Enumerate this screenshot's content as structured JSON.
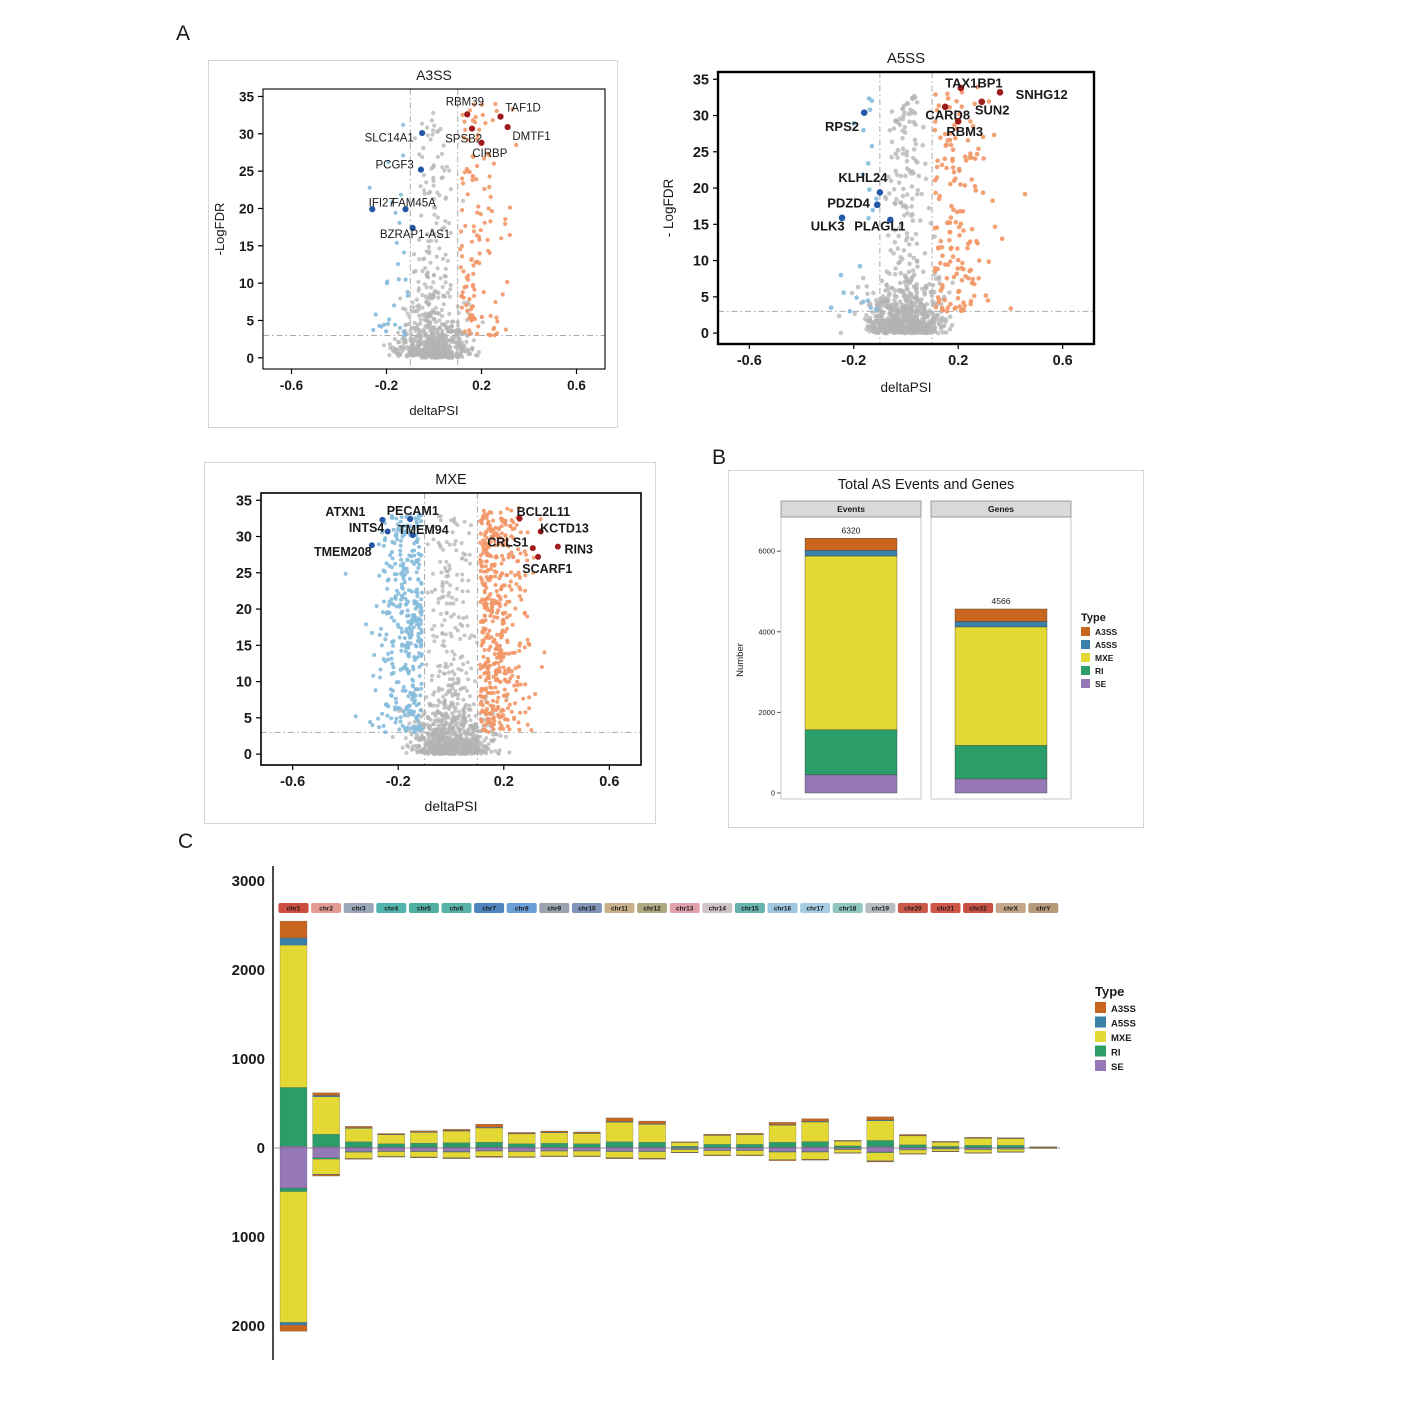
{
  "panel_labels": {
    "a": "A",
    "b": "B",
    "c": "C"
  },
  "colors": {
    "A3SS": "#c8661f",
    "A5SS": "#3a80a8",
    "MXE": "#e3d834",
    "RI": "#2a9d68",
    "SE": "#9678b6",
    "up": "#f29666",
    "down": "#85bbdc",
    "up_label": "#9e1c1c",
    "down_label": "#2458a6",
    "ns": "#b3b3b3",
    "threshold": "#9e9e9e"
  },
  "chart_data": [
    {
      "id": "volcano_a3ss",
      "type": "scatter",
      "variant": "volcano",
      "title": "A3SS",
      "xlabel": "deltaPSI",
      "ylabel": "-LogFDR",
      "xlim": [
        -0.72,
        0.72
      ],
      "ylim": [
        -1.5,
        36
      ],
      "xticks": [
        -0.6,
        -0.2,
        0.2,
        0.6
      ],
      "yticks": [
        0,
        5,
        10,
        15,
        20,
        25,
        30,
        35
      ],
      "fdr_threshold": 3,
      "psi_thresholds": [
        -0.1,
        0.1
      ],
      "n_points": {
        "ns": 700,
        "up": 130,
        "down": 30
      },
      "spread_up": 0.1,
      "spread_down": 0.075,
      "ypow": 1.4,
      "ypow_down": 1.8,
      "seed": 7,
      "labeled_genes": [
        {
          "name": "RBM39",
          "x": 0.14,
          "y": 32.6,
          "lx": 0.13,
          "ly": 34.3,
          "anchor": "middle",
          "dir": "up"
        },
        {
          "name": "TAF1D",
          "x": 0.28,
          "y": 32.3,
          "lx": 0.3,
          "ly": 33.5,
          "anchor": "start",
          "dir": "up"
        },
        {
          "name": "DMTF1",
          "x": 0.31,
          "y": 30.9,
          "lx": 0.33,
          "ly": 29.7,
          "anchor": "start",
          "dir": "up"
        },
        {
          "name": "SPSB2",
          "x": 0.16,
          "y": 30.7,
          "lx": 0.125,
          "ly": 29.4,
          "anchor": "middle",
          "dir": "up"
        },
        {
          "name": "CIRBP",
          "x": 0.2,
          "y": 28.8,
          "lx": 0.235,
          "ly": 27.4,
          "anchor": "middle",
          "dir": "up"
        },
        {
          "name": "SLC14A1",
          "x": -0.05,
          "y": 30.1,
          "lx": -0.085,
          "ly": 29.5,
          "anchor": "end",
          "dir": "down"
        },
        {
          "name": "PCGF3",
          "x": -0.055,
          "y": 25.2,
          "lx": -0.085,
          "ly": 25.9,
          "anchor": "end",
          "dir": "down"
        },
        {
          "name": "IFI27",
          "x": -0.26,
          "y": 19.9,
          "lx": -0.22,
          "ly": 20.8,
          "anchor": "middle",
          "dir": "down"
        },
        {
          "name": "FAM45A",
          "x": -0.12,
          "y": 19.9,
          "lx": -0.085,
          "ly": 20.8,
          "anchor": "middle",
          "dir": "down"
        },
        {
          "name": "BZRAP1-AS1",
          "x": -0.09,
          "y": 17.4,
          "lx": -0.08,
          "ly": 16.6,
          "anchor": "middle",
          "dir": "down"
        }
      ]
    },
    {
      "id": "volcano_a5ss",
      "type": "scatter",
      "variant": "volcano",
      "title": "A5SS",
      "xlabel": "deltaPSI",
      "ylabel": "- LogFDR",
      "xlim": [
        -0.72,
        0.72
      ],
      "ylim": [
        -1.5,
        36
      ],
      "xticks": [
        -0.6,
        -0.2,
        0.2,
        0.6
      ],
      "yticks": [
        0,
        5,
        10,
        15,
        20,
        25,
        30,
        35
      ],
      "fdr_threshold": 3,
      "psi_thresholds": [
        -0.1,
        0.1
      ],
      "n_points": {
        "ns": 750,
        "up": 160,
        "down": 22
      },
      "spread_up": 0.1,
      "spread_down": 0.07,
      "ypow": 1.3,
      "ypow_down": 1.6,
      "seed": 13,
      "labeled_genes": [
        {
          "name": "TAX1BP1",
          "x": 0.21,
          "y": 33.8,
          "lx": 0.26,
          "ly": 34.4,
          "anchor": "middle",
          "dir": "up"
        },
        {
          "name": "SNHG12",
          "x": 0.36,
          "y": 33.2,
          "lx": 0.42,
          "ly": 32.8,
          "anchor": "start",
          "dir": "up"
        },
        {
          "name": "CARD8",
          "x": 0.15,
          "y": 31.2,
          "lx": 0.16,
          "ly": 30.0,
          "anchor": "middle",
          "dir": "up"
        },
        {
          "name": "SUN2",
          "x": 0.29,
          "y": 31.9,
          "lx": 0.33,
          "ly": 30.7,
          "anchor": "middle",
          "dir": "up"
        },
        {
          "name": "RBM3",
          "x": 0.2,
          "y": 29.2,
          "lx": 0.225,
          "ly": 27.7,
          "anchor": "middle",
          "dir": "up"
        },
        {
          "name": "RPS2",
          "x": -0.16,
          "y": 30.4,
          "lx": -0.245,
          "ly": 28.4,
          "anchor": "middle",
          "dir": "down"
        },
        {
          "name": "KLHL24",
          "x": -0.1,
          "y": 19.4,
          "lx": -0.165,
          "ly": 21.4,
          "anchor": "middle",
          "dir": "down"
        },
        {
          "name": "PDZD4",
          "x": -0.11,
          "y": 17.7,
          "lx": -0.22,
          "ly": 17.9,
          "anchor": "middle",
          "dir": "down"
        },
        {
          "name": "ULK3",
          "x": -0.245,
          "y": 15.9,
          "lx": -0.3,
          "ly": 14.7,
          "anchor": "middle",
          "dir": "down"
        },
        {
          "name": "PLAGL1",
          "x": -0.06,
          "y": 15.6,
          "lx": -0.1,
          "ly": 14.7,
          "anchor": "middle",
          "dir": "down"
        }
      ]
    },
    {
      "id": "volcano_mxe",
      "type": "scatter",
      "variant": "volcano",
      "title": "MXE",
      "xlabel": "deltaPSI",
      "ylabel": "",
      "xlim": [
        -0.72,
        0.72
      ],
      "ylim": [
        -1.5,
        36
      ],
      "xticks": [
        -0.6,
        -0.2,
        0.2,
        0.6
      ],
      "yticks": [
        0,
        5,
        10,
        15,
        20,
        25,
        30,
        35
      ],
      "fdr_threshold": 3,
      "psi_thresholds": [
        -0.1,
        0.1
      ],
      "n_points": {
        "ns": 900,
        "up": 480,
        "down": 380
      },
      "spread_up": 0.085,
      "spread_down": 0.085,
      "ypow": 1.0,
      "ypow_down": 1.0,
      "seed": 21,
      "labeled_genes": [
        {
          "name": "ATXN1",
          "x": -0.26,
          "y": 32.3,
          "lx": -0.4,
          "ly": 33.4,
          "anchor": "middle",
          "dir": "down"
        },
        {
          "name": "PECAM1",
          "x": -0.155,
          "y": 32.4,
          "lx": -0.145,
          "ly": 33.5,
          "anchor": "middle",
          "dir": "down"
        },
        {
          "name": "INTS4",
          "x": -0.24,
          "y": 30.7,
          "lx": -0.32,
          "ly": 31.2,
          "anchor": "middle",
          "dir": "down"
        },
        {
          "name": "TMEM94",
          "x": -0.145,
          "y": 30.2,
          "lx": -0.105,
          "ly": 30.9,
          "anchor": "middle",
          "dir": "down"
        },
        {
          "name": "TMEM208",
          "x": -0.3,
          "y": 28.8,
          "lx": -0.41,
          "ly": 27.9,
          "anchor": "middle",
          "dir": "down"
        },
        {
          "name": "BCL2L11",
          "x": 0.26,
          "y": 32.5,
          "lx": 0.35,
          "ly": 33.4,
          "anchor": "middle",
          "dir": "up"
        },
        {
          "name": "KCTD13",
          "x": 0.34,
          "y": 30.7,
          "lx": 0.43,
          "ly": 31.1,
          "anchor": "middle",
          "dir": "up"
        },
        {
          "name": "CRLS1",
          "x": 0.31,
          "y": 28.4,
          "lx": 0.215,
          "ly": 29.2,
          "anchor": "middle",
          "dir": "up"
        },
        {
          "name": "RIN3",
          "x": 0.405,
          "y": 28.6,
          "lx": 0.43,
          "ly": 28.2,
          "anchor": "start",
          "dir": "up"
        },
        {
          "name": "SCARF1",
          "x": 0.33,
          "y": 27.2,
          "lx": 0.365,
          "ly": 25.5,
          "anchor": "middle",
          "dir": "up"
        }
      ]
    },
    {
      "id": "as_totals",
      "type": "bar",
      "variant": "stacked_facets",
      "title": "Total AS Events and Genes",
      "ylabel": "Number",
      "yticks": [
        0,
        2000,
        4000,
        6000
      ],
      "stack_order": [
        "SE",
        "RI",
        "MXE",
        "A5SS",
        "A3SS"
      ],
      "facets": [
        {
          "label": "Events",
          "total": 6320,
          "values": {
            "SE": 450,
            "RI": 1120,
            "MXE": 4310,
            "A5SS": 140,
            "A3SS": 300
          }
        },
        {
          "label": "Genes",
          "total": 4566,
          "values": {
            "SE": 350,
            "RI": 830,
            "MXE": 2940,
            "A5SS": 136,
            "A3SS": 310
          }
        }
      ],
      "legend": {
        "title": "Type",
        "entries": [
          "A3SS",
          "A5SS",
          "MXE",
          "RI",
          "SE"
        ]
      }
    },
    {
      "id": "chromosome_distribution",
      "type": "bar",
      "variant": "diverging_stacked",
      "ytick_values": [
        3000,
        2000,
        1000,
        0,
        -1000,
        -2000
      ],
      "yticks_labels": [
        "3000",
        "2000",
        "1000",
        "0",
        "1000",
        "2000"
      ],
      "stack_order": [
        "SE",
        "RI",
        "MXE",
        "A5SS",
        "A3SS"
      ],
      "legend": {
        "title": "Type",
        "entries": [
          "A3SS",
          "A5SS",
          "MXE",
          "RI",
          "SE"
        ]
      },
      "chromosomes": [
        {
          "name": "chr1",
          "chip": "#cc4c3f",
          "pos": [
            20,
            660,
            1600,
            80,
            190
          ],
          "neg": [
            450,
            40,
            1470,
            30,
            70
          ]
        },
        {
          "name": "chr2",
          "chip": "#e39a93",
          "pos": [
            15,
            140,
            420,
            15,
            30
          ],
          "neg": [
            110,
            15,
            170,
            5,
            15
          ]
        },
        {
          "name": "chr3",
          "chip": "#9aa7b8",
          "pos": [
            10,
            60,
            150,
            8,
            15
          ],
          "neg": [
            40,
            8,
            70,
            3,
            6
          ]
        },
        {
          "name": "chr4",
          "chip": "#53b3ae",
          "pos": [
            8,
            40,
            100,
            5,
            10
          ],
          "neg": [
            35,
            5,
            55,
            2,
            5
          ]
        },
        {
          "name": "chr5",
          "chip": "#4fae9f",
          "pos": [
            10,
            45,
            120,
            6,
            12
          ],
          "neg": [
            35,
            6,
            60,
            3,
            6
          ]
        },
        {
          "name": "chr6",
          "chip": "#57b3a8",
          "pos": [
            10,
            50,
            130,
            6,
            14
          ],
          "neg": [
            40,
            6,
            65,
            3,
            6
          ]
        },
        {
          "name": "chr7",
          "chip": "#4f86c0",
          "pos": [
            10,
            55,
            160,
            8,
            35
          ],
          "neg": [
            30,
            5,
            60,
            3,
            8
          ]
        },
        {
          "name": "chr8",
          "chip": "#6a9fd8",
          "pos": [
            8,
            40,
            110,
            5,
            12
          ],
          "neg": [
            35,
            5,
            60,
            2,
            5
          ]
        },
        {
          "name": "chr9",
          "chip": "#9aa3ad",
          "pos": [
            8,
            45,
            120,
            6,
            12
          ],
          "neg": [
            30,
            5,
            55,
            2,
            5
          ]
        },
        {
          "name": "chr10",
          "chip": "#7f94b8",
          "pos": [
            8,
            40,
            115,
            5,
            12
          ],
          "neg": [
            30,
            5,
            55,
            2,
            5
          ]
        },
        {
          "name": "chr11",
          "chip": "#c9b089",
          "pos": [
            10,
            60,
            220,
            8,
            40
          ],
          "neg": [
            35,
            6,
            70,
            3,
            8
          ]
        },
        {
          "name": "chr12",
          "chip": "#b0a880",
          "pos": [
            10,
            55,
            200,
            8,
            30
          ],
          "neg": [
            35,
            6,
            75,
            3,
            8
          ]
        },
        {
          "name": "chr13",
          "chip": "#e0a0ac",
          "pos": [
            4,
            15,
            45,
            2,
            5
          ],
          "neg": [
            15,
            3,
            30,
            1,
            3
          ]
        },
        {
          "name": "chr14",
          "chip": "#cfc3c5",
          "pos": [
            6,
            35,
            100,
            4,
            10
          ],
          "neg": [
            25,
            4,
            50,
            2,
            5
          ]
        },
        {
          "name": "chr15",
          "chip": "#66b2ac",
          "pos": [
            6,
            35,
            110,
            5,
            10
          ],
          "neg": [
            25,
            4,
            50,
            2,
            5
          ]
        },
        {
          "name": "chr16",
          "chip": "#9fc6e0",
          "pos": [
            10,
            55,
            190,
            8,
            25
          ],
          "neg": [
            40,
            6,
            85,
            3,
            8
          ]
        },
        {
          "name": "chr17",
          "chip": "#a6cde3",
          "pos": [
            12,
            60,
            220,
            8,
            30
          ],
          "neg": [
            40,
            6,
            80,
            3,
            8
          ]
        },
        {
          "name": "chr18",
          "chip": "#8fc6c0",
          "pos": [
            4,
            20,
            55,
            2,
            5
          ],
          "neg": [
            15,
            3,
            35,
            1,
            3
          ]
        },
        {
          "name": "chr19",
          "chip": "#b9bdc2",
          "pos": [
            15,
            70,
            220,
            10,
            35
          ],
          "neg": [
            45,
            8,
            90,
            4,
            10
          ]
        },
        {
          "name": "chr20",
          "chip": "#cc5a4a",
          "pos": [
            6,
            30,
            100,
            4,
            12
          ],
          "neg": [
            20,
            3,
            40,
            2,
            4
          ]
        },
        {
          "name": "chr21",
          "chip": "#d2554a",
          "pos": [
            3,
            15,
            50,
            2,
            5
          ],
          "neg": [
            10,
            2,
            25,
            1,
            2
          ]
        },
        {
          "name": "chr22",
          "chip": "#c94f45",
          "pos": [
            5,
            25,
            80,
            3,
            8
          ],
          "neg": [
            15,
            3,
            35,
            1,
            3
          ]
        },
        {
          "name": "chrX",
          "chip": "#c2a687",
          "pos": [
            5,
            25,
            75,
            3,
            8
          ],
          "neg": [
            12,
            2,
            30,
            1,
            2
          ]
        },
        {
          "name": "chrY",
          "chip": "#b59a79",
          "pos": [
            1,
            3,
            8,
            0,
            1
          ],
          "neg": [
            2,
            0,
            4,
            0,
            0
          ]
        }
      ]
    }
  ]
}
